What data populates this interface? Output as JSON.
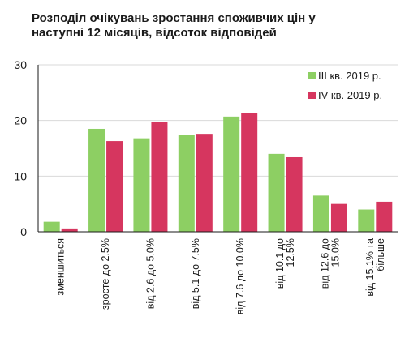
{
  "chart_data": {
    "type": "bar",
    "title": "Розподіл очікувань зростання споживчих цін у наступні 12 місяців, відсоток відповідей",
    "title_lines": [
      "Розподіл очікувань зростання споживчих цін у",
      "наступні 12 місяців, відсоток відповідей"
    ],
    "xlabel": "",
    "ylabel": "",
    "ylim": [
      0,
      30
    ],
    "yticks": [
      0,
      10,
      20,
      30
    ],
    "grid": true,
    "legend_position": "top-right",
    "categories": [
      [
        "зменшиться"
      ],
      [
        "зросте до 2.5%"
      ],
      [
        "від 2.6 до 5.0%"
      ],
      [
        "від 5.1 до 7.5%"
      ],
      [
        "від 7.6 до 10.0%"
      ],
      [
        "від 10.1 до",
        "12.5%"
      ],
      [
        "від 12.6 до",
        "15.0%"
      ],
      [
        "від 15.1% та",
        "більше"
      ]
    ],
    "series": [
      {
        "name": "III кв. 2019 р.",
        "color": "#8dcf63",
        "values": [
          1.8,
          18.5,
          16.8,
          17.4,
          20.7,
          14.0,
          6.5,
          4.0
        ]
      },
      {
        "name": "IV кв. 2019 р.",
        "color": "#d6365f",
        "values": [
          0.6,
          16.3,
          19.8,
          17.6,
          21.4,
          13.4,
          5.0,
          5.4
        ]
      }
    ]
  }
}
